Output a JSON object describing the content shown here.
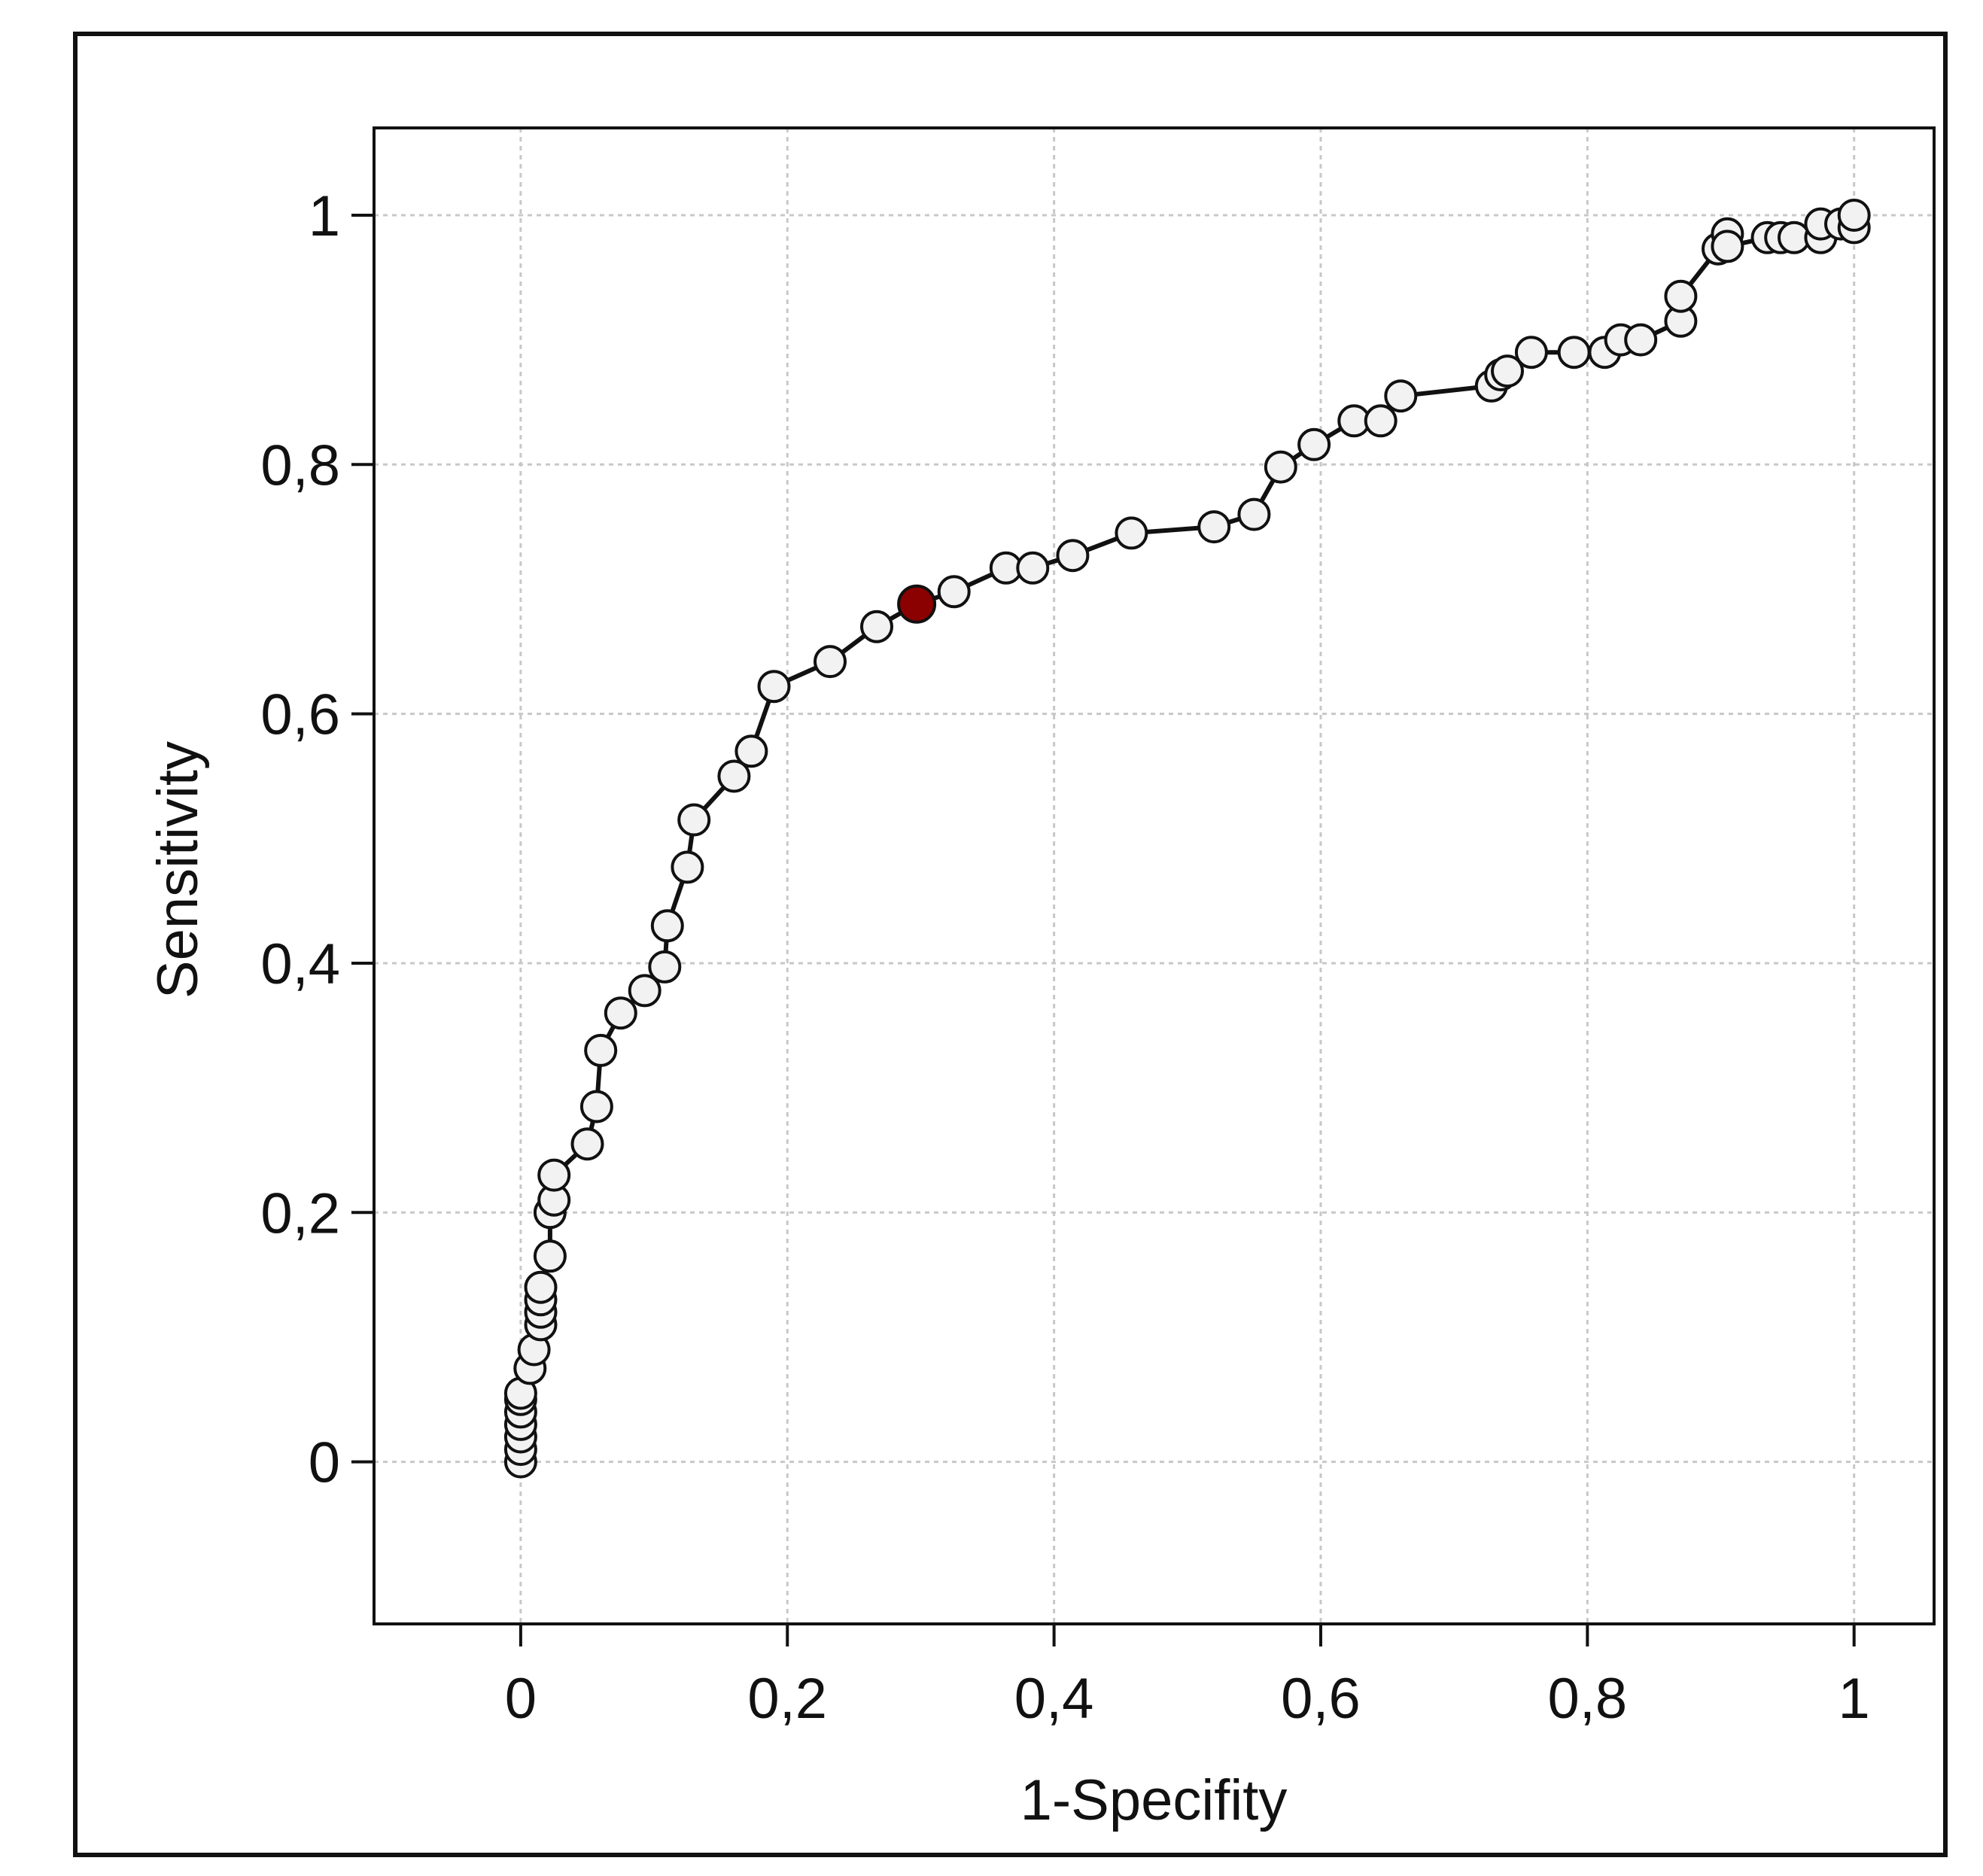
{
  "chart_data": {
    "type": "line",
    "xlabel": "1-Specifity",
    "ylabel": "Sensitivity",
    "xlim": [
      -0.11,
      1.06
    ],
    "ylim": [
      -0.13,
      1.07
    ],
    "x_ticks": [
      "0",
      "0,2",
      "0,4",
      "0,6",
      "0,8",
      "1"
    ],
    "y_ticks": [
      "0",
      "0,2",
      "0,4",
      "0,6",
      "0,8",
      "1"
    ],
    "tick_values": [
      0,
      0.2,
      0.4,
      0.6,
      0.8,
      1
    ],
    "grid": true,
    "point_fill": "#f2f2f2",
    "highlight_fill": "#8b0000",
    "line_color": "#111111",
    "highlight_index": 31,
    "points": [
      [
        0.0,
        0.0
      ],
      [
        0.0,
        0.01
      ],
      [
        0.0,
        0.02
      ],
      [
        0.0,
        0.03
      ],
      [
        0.0,
        0.04
      ],
      [
        0.0,
        0.05
      ],
      [
        0.0,
        0.055
      ],
      [
        0.007,
        0.075
      ],
      [
        0.01,
        0.09
      ],
      [
        0.015,
        0.11
      ],
      [
        0.015,
        0.12
      ],
      [
        0.015,
        0.13
      ],
      [
        0.015,
        0.14
      ],
      [
        0.022,
        0.165
      ],
      [
        0.022,
        0.2
      ],
      [
        0.025,
        0.21
      ],
      [
        0.025,
        0.23
      ],
      [
        0.05,
        0.255
      ],
      [
        0.057,
        0.285
      ],
      [
        0.06,
        0.33
      ],
      [
        0.075,
        0.36
      ],
      [
        0.093,
        0.378
      ],
      [
        0.108,
        0.397
      ],
      [
        0.11,
        0.43
      ],
      [
        0.125,
        0.477
      ],
      [
        0.13,
        0.515
      ],
      [
        0.16,
        0.55
      ],
      [
        0.173,
        0.57
      ],
      [
        0.19,
        0.622
      ],
      [
        0.232,
        0.642
      ],
      [
        0.267,
        0.67
      ],
      [
        0.297,
        0.688
      ],
      [
        0.325,
        0.698
      ],
      [
        0.364,
        0.717
      ],
      [
        0.384,
        0.717
      ],
      [
        0.414,
        0.727
      ],
      [
        0.458,
        0.745
      ],
      [
        0.52,
        0.75
      ],
      [
        0.55,
        0.76
      ],
      [
        0.57,
        0.798
      ],
      [
        0.595,
        0.816
      ],
      [
        0.625,
        0.835
      ],
      [
        0.645,
        0.835
      ],
      [
        0.66,
        0.855
      ],
      [
        0.728,
        0.863
      ],
      [
        0.735,
        0.872
      ],
      [
        0.74,
        0.875
      ],
      [
        0.758,
        0.89
      ],
      [
        0.79,
        0.89
      ],
      [
        0.813,
        0.89
      ],
      [
        0.825,
        0.9
      ],
      [
        0.84,
        0.9
      ],
      [
        0.87,
        0.915
      ],
      [
        0.87,
        0.935
      ],
      [
        0.898,
        0.973
      ],
      [
        0.905,
        0.985
      ],
      [
        0.905,
        0.975
      ],
      [
        0.935,
        0.982
      ],
      [
        0.945,
        0.982
      ],
      [
        0.955,
        0.982
      ],
      [
        0.975,
        0.982
      ],
      [
        0.975,
        0.993
      ],
      [
        0.99,
        0.993
      ],
      [
        1.0,
        0.99
      ],
      [
        1.0,
        1.0
      ]
    ]
  }
}
